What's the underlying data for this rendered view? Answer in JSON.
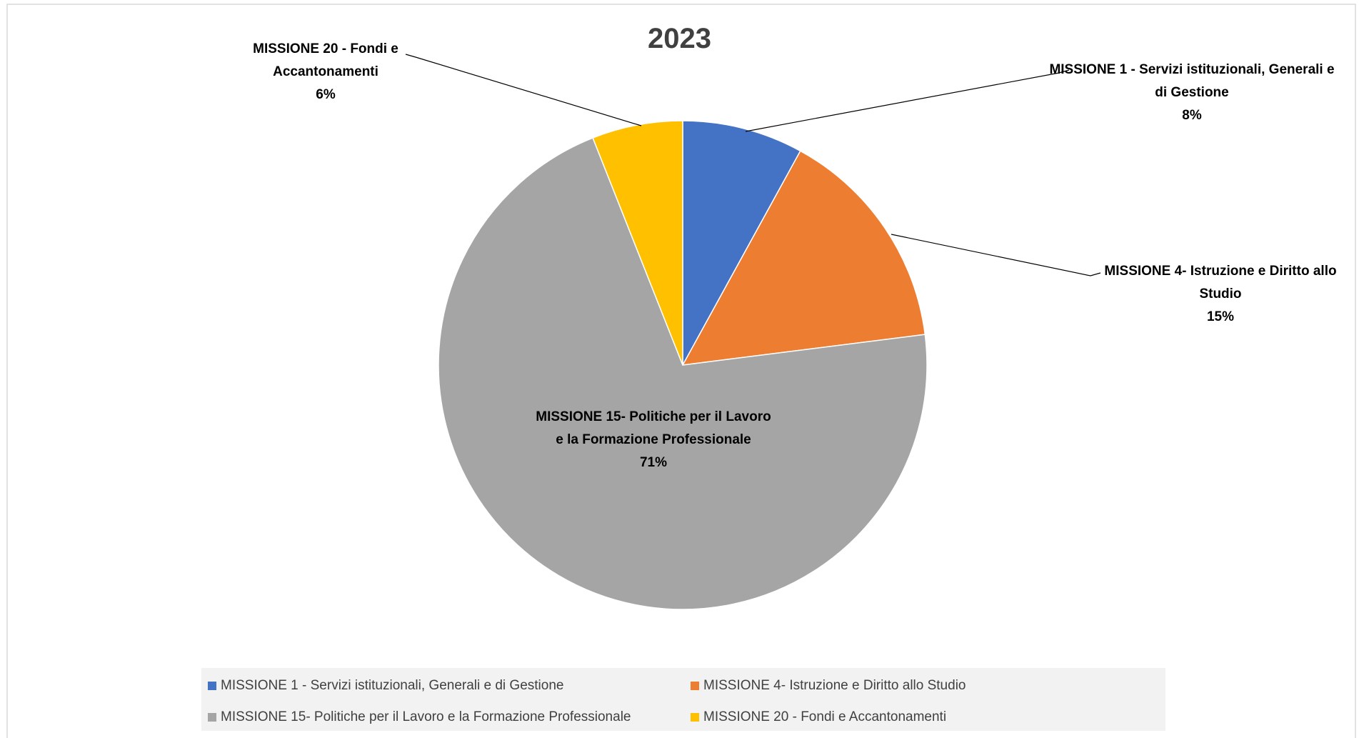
{
  "chart_data": {
    "type": "pie",
    "title": "2023",
    "categories": [
      "MISSIONE 1 - Servizi istituzionali, Generali e di Gestione",
      "MISSIONE 4- Istruzione e Diritto allo Studio",
      "MISSIONE 15- Politiche per il Lavoro e la Formazione Professionale",
      "MISSIONE 20 - Fondi e Accantonamenti"
    ],
    "values": [
      8,
      15,
      71,
      6
    ],
    "value_labels": [
      "8%",
      "15%",
      "71%",
      "6%"
    ],
    "colors": [
      "#4472c4",
      "#ed7d31",
      "#a5a5a5",
      "#ffc000"
    ],
    "legend": "bottom"
  }
}
